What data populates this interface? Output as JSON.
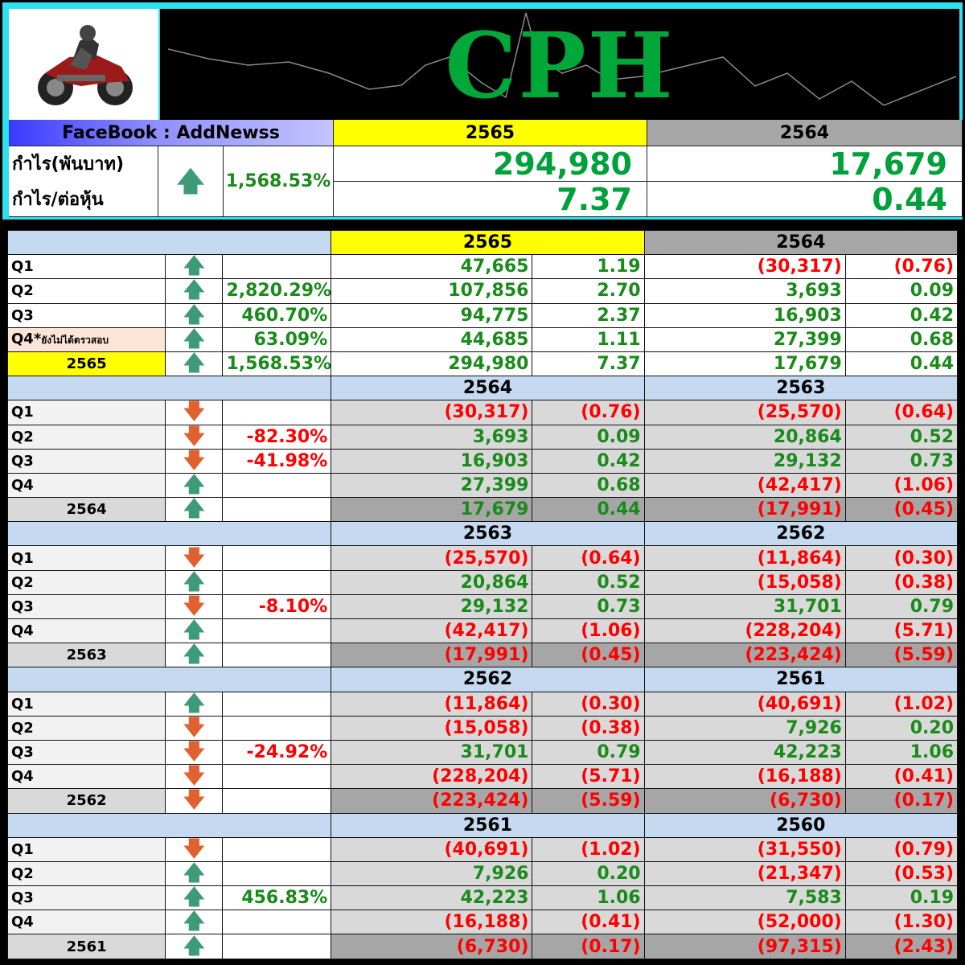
{
  "banner": {
    "title": "CPH"
  },
  "top": {
    "facebook": "FaceBook : AddNewss",
    "year_a": "2565",
    "year_b": "2564",
    "label_profit": "กำไร(พันบาท)",
    "label_eps": "กำไร/ต่อหุ้น",
    "growth": "1,568.53%",
    "profit_a": "294,980",
    "profit_b": "17,679",
    "eps_a": "7.37",
    "eps_b": "0.44"
  },
  "colors": {
    "positive": "#1a8a1a",
    "negative": "#ff0000",
    "accent_yellow": "#ffff00",
    "header_blue": "#c5d9f1"
  },
  "sections": [
    {
      "year_a": "2565",
      "year_b": "2564",
      "rows": [
        {
          "label": "Q1",
          "arrow": "up",
          "pct": "",
          "v1": "47,665",
          "e1": "1.19",
          "v2": "(30,317)",
          "e2": "(0.76)"
        },
        {
          "label": "Q2",
          "arrow": "up",
          "pct": "2,820.29%",
          "v1": "107,856",
          "e1": "2.70",
          "v2": "3,693",
          "e2": "0.09"
        },
        {
          "label": "Q3",
          "arrow": "up",
          "pct": "460.70%",
          "v1": "94,775",
          "e1": "2.37",
          "v2": "16,903",
          "e2": "0.42"
        },
        {
          "label": "Q4*",
          "note": "ยังไม่ได้ตรวสอบ",
          "arrow": "up",
          "pct": "63.09%",
          "v1": "44,685",
          "e1": "1.11",
          "v2": "27,399",
          "e2": "0.68"
        },
        {
          "label": "2565",
          "arrow": "up",
          "pct": "1,568.53%",
          "v1": "294,980",
          "e1": "7.37",
          "v2": "17,679",
          "e2": "0.44",
          "total": true
        }
      ]
    },
    {
      "year_a": "2564",
      "year_b": "2563",
      "rows": [
        {
          "label": "Q1",
          "arrow": "down",
          "pct": "",
          "v1": "(30,317)",
          "e1": "(0.76)",
          "v2": "(25,570)",
          "e2": "(0.64)"
        },
        {
          "label": "Q2",
          "arrow": "down",
          "pct": "-82.30%",
          "v1": "3,693",
          "e1": "0.09",
          "v2": "20,864",
          "e2": "0.52"
        },
        {
          "label": "Q3",
          "arrow": "down",
          "pct": "-41.98%",
          "v1": "16,903",
          "e1": "0.42",
          "v2": "29,132",
          "e2": "0.73"
        },
        {
          "label": "Q4",
          "arrow": "up",
          "pct": "",
          "v1": "27,399",
          "e1": "0.68",
          "v2": "(42,417)",
          "e2": "(1.06)"
        },
        {
          "label": "2564",
          "arrow": "up",
          "pct": "",
          "v1": "17,679",
          "e1": "0.44",
          "v2": "(17,991)",
          "e2": "(0.45)",
          "total": true
        }
      ]
    },
    {
      "year_a": "2563",
      "year_b": "2562",
      "rows": [
        {
          "label": "Q1",
          "arrow": "down",
          "pct": "",
          "v1": "(25,570)",
          "e1": "(0.64)",
          "v2": "(11,864)",
          "e2": "(0.30)"
        },
        {
          "label": "Q2",
          "arrow": "up",
          "pct": "",
          "v1": "20,864",
          "e1": "0.52",
          "v2": "(15,058)",
          "e2": "(0.38)"
        },
        {
          "label": "Q3",
          "arrow": "down",
          "pct": "-8.10%",
          "v1": "29,132",
          "e1": "0.73",
          "v2": "31,701",
          "e2": "0.79"
        },
        {
          "label": "Q4",
          "arrow": "up",
          "pct": "",
          "v1": "(42,417)",
          "e1": "(1.06)",
          "v2": "(228,204)",
          "e2": "(5.71)"
        },
        {
          "label": "2563",
          "arrow": "up",
          "pct": "",
          "v1": "(17,991)",
          "e1": "(0.45)",
          "v2": "(223,424)",
          "e2": "(5.59)",
          "total": true
        }
      ]
    },
    {
      "year_a": "2562",
      "year_b": "2561",
      "rows": [
        {
          "label": "Q1",
          "arrow": "up",
          "pct": "",
          "v1": "(11,864)",
          "e1": "(0.30)",
          "v2": "(40,691)",
          "e2": "(1.02)"
        },
        {
          "label": "Q2",
          "arrow": "down",
          "pct": "",
          "v1": "(15,058)",
          "e1": "(0.38)",
          "v2": "7,926",
          "e2": "0.20"
        },
        {
          "label": "Q3",
          "arrow": "down",
          "pct": "-24.92%",
          "v1": "31,701",
          "e1": "0.79",
          "v2": "42,223",
          "e2": "1.06"
        },
        {
          "label": "Q4",
          "arrow": "down",
          "pct": "",
          "v1": "(228,204)",
          "e1": "(5.71)",
          "v2": "(16,188)",
          "e2": "(0.41)"
        },
        {
          "label": "2562",
          "arrow": "down",
          "pct": "",
          "v1": "(223,424)",
          "e1": "(5.59)",
          "v2": "(6,730)",
          "e2": "(0.17)",
          "total": true
        }
      ]
    },
    {
      "year_a": "2561",
      "year_b": "2560",
      "rows": [
        {
          "label": "Q1",
          "arrow": "down",
          "pct": "",
          "v1": "(40,691)",
          "e1": "(1.02)",
          "v2": "(31,550)",
          "e2": "(0.79)"
        },
        {
          "label": "Q2",
          "arrow": "up",
          "pct": "",
          "v1": "7,926",
          "e1": "0.20",
          "v2": "(21,347)",
          "e2": "(0.53)"
        },
        {
          "label": "Q3",
          "arrow": "up",
          "pct": "456.83%",
          "v1": "42,223",
          "e1": "1.06",
          "v2": "7,583",
          "e2": "0.19"
        },
        {
          "label": "Q4",
          "arrow": "up",
          "pct": "",
          "v1": "(16,188)",
          "e1": "(0.41)",
          "v2": "(52,000)",
          "e2": "(1.30)"
        },
        {
          "label": "2561",
          "arrow": "up",
          "pct": "",
          "v1": "(6,730)",
          "e1": "(0.17)",
          "v2": "(97,315)",
          "e2": "(2.43)",
          "total": true
        }
      ]
    }
  ]
}
